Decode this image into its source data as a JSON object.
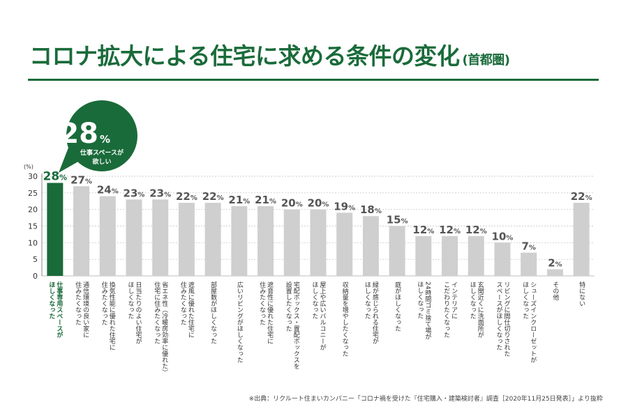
{
  "title": "コロナ拡大による住宅に求める条件の変化",
  "subtitle": "(首都圏)",
  "source": "※出典：リクルート住まいカンパニー「コロナ禍を受けた『住宅購入・建築検討者』調査［2020年11月25日発表］」より抜粋",
  "callout": {
    "value": "28",
    "unit": "%",
    "label_line1": "仕事スペースが",
    "label_line2": "欲しい"
  },
  "colors": {
    "highlight": "#1a6b3a",
    "bar": "#cfcfcf",
    "value_text": "#555555",
    "grid": "#bdbdbd"
  },
  "chart_data": {
    "type": "bar",
    "ylabel": "(%)",
    "ylim": [
      0,
      30
    ],
    "yticks": [
      0,
      5,
      10,
      15,
      20,
      25,
      30
    ],
    "grid": true,
    "highlight_index": 0,
    "value_suffix": "%",
    "categories": [
      "仕事専用スペースが\nほしくなった",
      "通信環境の良い家に\n住みたくなった",
      "換気性能に優れた住宅に\n住みたくなった",
      "日当たりのよい住宅が\nほしくなった",
      "省エネ性（冷暖房効率に優れた）\n住宅に住みたくなった",
      "遮風に優れた住宅に\n住みたくなった",
      "部屋数がほしくなった",
      "広いリビングがほしくなった",
      "遮音性に優れた住宅に\n住みたくなった",
      "宅配ボックス・置配ボックスを\n設置したくなった",
      "屋上や広いバルコニーが\nほしくなった",
      "収納量を増やしたくなった",
      "緑が感じられる住宅が\nほしくなった",
      "庭がほしくなった",
      "24時間ゴミ捨て場が\nほしくなった",
      "インテリアに\nこだわりたくなった",
      "玄関近くに洗面所が\nほしくなった",
      "リビングに間仕切りされた\nスペースがほしくなった",
      "シューズインクローゼットが\nほしくなった",
      "その他",
      "特にない"
    ],
    "values": [
      28,
      27,
      24,
      23,
      23,
      22,
      22,
      21,
      21,
      20,
      20,
      19,
      18,
      15,
      12,
      12,
      12,
      10,
      7,
      2,
      22
    ]
  }
}
